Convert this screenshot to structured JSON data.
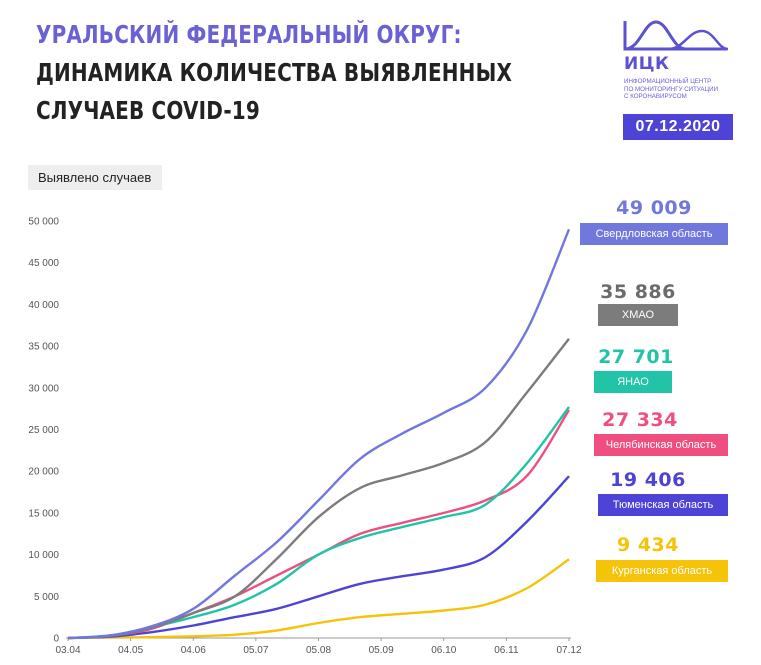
{
  "header": {
    "title_line1": "УРАЛЬСКИЙ ФЕДЕРАЛЬНЫЙ ОКРУГ:",
    "title_line2": "ДИНАМИКА КОЛИЧЕСТВА ВЫЯВЛЕННЫХ",
    "title_line3": "СЛУЧАЕВ COVID-19"
  },
  "logo": {
    "name": "ИЦК",
    "subtitle_line1": "Информационный центр",
    "subtitle_line2": "по мониторингу ситуации",
    "subtitle_line3": "с коронавирусом",
    "color": "#5a52d0"
  },
  "date": "07.12.2020",
  "y_axis_label": "Выявлено случаев",
  "chart_data": {
    "type": "line",
    "ylim": [
      0,
      50000
    ],
    "yticks": [
      0,
      5000,
      10000,
      15000,
      20000,
      25000,
      30000,
      35000,
      40000,
      45000,
      50000
    ],
    "ytick_labels": [
      "0",
      "5 000",
      "10 000",
      "15 000",
      "20 000",
      "25 000",
      "30 000",
      "35 000",
      "40 000",
      "45 000",
      "50 000"
    ],
    "xticks": [
      "03.04",
      "04.05",
      "04.06",
      "05.07",
      "05.08",
      "05.09",
      "06.10",
      "06.11",
      "07.12"
    ],
    "grid": false,
    "series": [
      {
        "name": "Свердловская область",
        "final_label": "49 009",
        "color": "#7078dc",
        "values": [
          0,
          300,
          1400,
          3500,
          7500,
          11500,
          16500,
          21500,
          24500,
          27000,
          30000,
          37000,
          49009
        ]
      },
      {
        "name": "ХМАО",
        "final_label": "35 886",
        "color": "#7c7c7c",
        "values": [
          0,
          250,
          1200,
          3000,
          5000,
          9500,
          14500,
          18000,
          19500,
          21000,
          23500,
          29500,
          35886
        ]
      },
      {
        "name": "ЯНАО",
        "final_label": "27 701",
        "color": "#22c4a8",
        "values": [
          0,
          300,
          1300,
          2500,
          4000,
          6500,
          10000,
          12000,
          13300,
          14500,
          16000,
          21000,
          27701
        ]
      },
      {
        "name": "Челябинская область",
        "final_label": "27 334",
        "color": "#ee4f7e",
        "values": [
          0,
          250,
          1100,
          3000,
          5000,
          7500,
          10000,
          12500,
          13800,
          15000,
          16500,
          19500,
          27334
        ]
      },
      {
        "name": "Тюменская область",
        "final_label": "19 406",
        "color": "#4d43d6",
        "values": [
          0,
          150,
          700,
          1500,
          2500,
          3500,
          5000,
          6500,
          7400,
          8200,
          9700,
          14000,
          19406
        ]
      },
      {
        "name": "Курганская область",
        "final_label": "9 434",
        "color": "#f5c30a",
        "values": [
          0,
          50,
          100,
          200,
          400,
          900,
          1800,
          2500,
          2900,
          3300,
          4000,
          6000,
          9434
        ]
      }
    ]
  }
}
